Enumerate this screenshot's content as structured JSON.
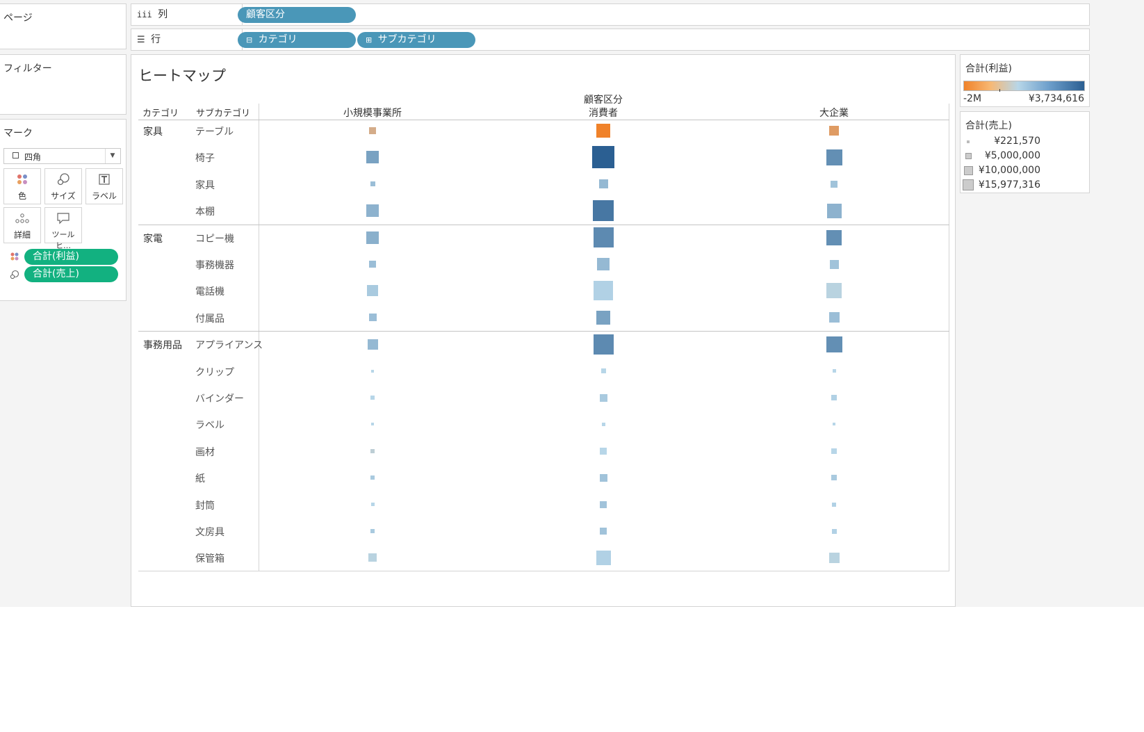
{
  "shelves": {
    "pages_label": "ページ",
    "filters_label": "フィルター",
    "columns": {
      "label": "列",
      "pills": [
        "顧客区分"
      ]
    },
    "rows": {
      "label": "行",
      "pills": [
        "カテゴリ",
        "サブカテゴリ"
      ]
    }
  },
  "marks": {
    "title": "マーク",
    "mark_type": "四角",
    "cards": [
      {
        "label": "色",
        "icon": "color-dots-icon"
      },
      {
        "label": "サイズ",
        "icon": "size-icon"
      },
      {
        "label": "ラベル",
        "icon": "label-t-icon"
      },
      {
        "label": "詳細",
        "icon": "detail-dots-icon"
      },
      {
        "label": "ツールヒ…",
        "icon": "tooltip-icon"
      }
    ],
    "fields": [
      {
        "label": "合計(利益)",
        "icon": "color-dots-icon"
      },
      {
        "label": "合計(売上)",
        "icon": "size-icon"
      }
    ]
  },
  "view": {
    "title": "ヒートマップ",
    "row_headers": [
      "カテゴリ",
      "サブカテゴリ"
    ],
    "column_group_header": "顧客区分"
  },
  "legends": {
    "color": {
      "title": "合計(利益)",
      "min_label": "-2M",
      "max_label": "¥3,734,616",
      "low_color": "#f0822a",
      "mid_color": "#b7d6e8",
      "high_color": "#2b5f92"
    },
    "size": {
      "title": "合計(売上)",
      "items": [
        "¥221,570",
        "¥5,000,000",
        "¥10,000,000",
        "¥15,977,316"
      ]
    }
  },
  "chart_data": {
    "type": "heatmap",
    "columns": [
      "小規模事業所",
      "消費者",
      "大企業"
    ],
    "groups": [
      {
        "category": "家具",
        "rows": [
          {
            "name": "テーブル",
            "size": [
              0.32,
              0.62,
              0.45
            ],
            "color": [
              0.25,
              0.0,
              0.15
            ]
          },
          {
            "name": "椅子",
            "size": [
              0.55,
              1.0,
              0.72
            ],
            "color": [
              0.72,
              1.0,
              0.8
            ]
          },
          {
            "name": "家具",
            "size": [
              0.22,
              0.42,
              0.3
            ],
            "color": [
              0.6,
              0.62,
              0.58
            ]
          },
          {
            "name": "本棚",
            "size": [
              0.55,
              0.95,
              0.65
            ],
            "color": [
              0.65,
              0.9,
              0.65
            ]
          }
        ]
      },
      {
        "category": "家電",
        "rows": [
          {
            "name": "コピー機",
            "size": [
              0.55,
              0.92,
              0.7
            ],
            "color": [
              0.66,
              0.82,
              0.8
            ]
          },
          {
            "name": "事務機器",
            "size": [
              0.32,
              0.55,
              0.4
            ],
            "color": [
              0.6,
              0.62,
              0.58
            ]
          },
          {
            "name": "電話機",
            "size": [
              0.5,
              0.88,
              0.68
            ],
            "color": [
              0.55,
              0.52,
              0.48
            ]
          },
          {
            "name": "付属品",
            "size": [
              0.35,
              0.62,
              0.47
            ],
            "color": [
              0.6,
              0.72,
              0.6
            ]
          }
        ]
      },
      {
        "category": "事務用品",
        "rows": [
          {
            "name": "アプライアンス",
            "size": [
              0.47,
              0.92,
              0.72
            ],
            "color": [
              0.62,
              0.82,
              0.8
            ]
          },
          {
            "name": "クリップ",
            "size": [
              0.13,
              0.22,
              0.16
            ],
            "color": [
              0.5,
              0.5,
              0.5
            ]
          },
          {
            "name": "バインダー",
            "size": [
              0.2,
              0.33,
              0.25
            ],
            "color": [
              0.5,
              0.55,
              0.52
            ]
          },
          {
            "name": "ラベル",
            "size": [
              0.1,
              0.15,
              0.12
            ],
            "color": [
              0.5,
              0.5,
              0.5
            ]
          },
          {
            "name": "画材",
            "size": [
              0.18,
              0.3,
              0.24
            ],
            "color": [
              0.45,
              0.5,
              0.5
            ]
          },
          {
            "name": "紙",
            "size": [
              0.2,
              0.33,
              0.25
            ],
            "color": [
              0.55,
              0.58,
              0.55
            ]
          },
          {
            "name": "封筒",
            "size": [
              0.16,
              0.3,
              0.2
            ],
            "color": [
              0.5,
              0.58,
              0.52
            ]
          },
          {
            "name": "文房具",
            "size": [
              0.18,
              0.3,
              0.22
            ],
            "color": [
              0.55,
              0.58,
              0.52
            ]
          },
          {
            "name": "保管箱",
            "size": [
              0.38,
              0.65,
              0.48
            ],
            "color": [
              0.48,
              0.52,
              0.48
            ]
          }
        ]
      }
    ]
  }
}
